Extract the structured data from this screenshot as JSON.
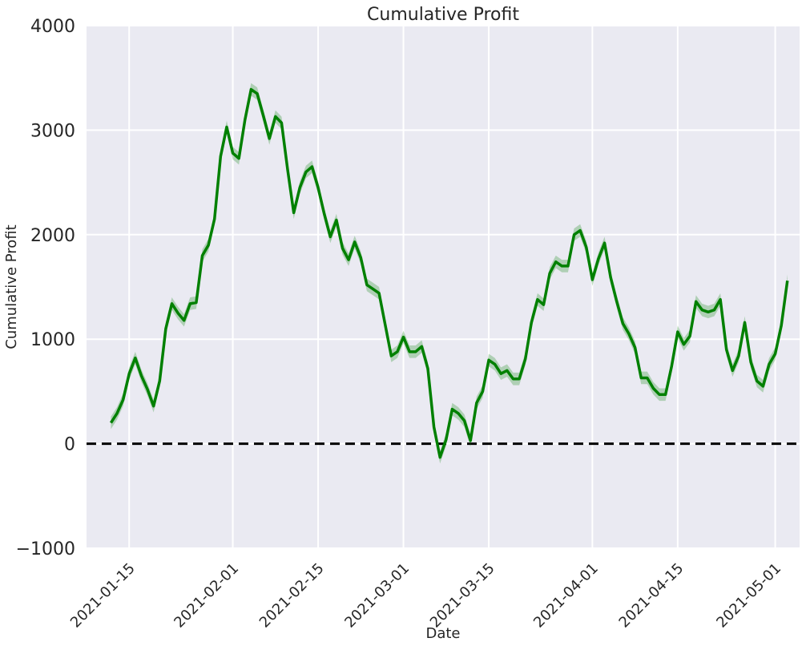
{
  "chart_data": {
    "type": "line",
    "title": "Cumulative Profit",
    "xlabel": "Date",
    "ylabel": "Cumulative Profit",
    "ylim": [
      -1000,
      4000
    ],
    "xlim": [
      "2021-01-08",
      "2021-05-05"
    ],
    "yticks": [
      "−1000",
      "0",
      "1000",
      "2000",
      "3000",
      "4000"
    ],
    "ytick_values": [
      -1000,
      0,
      1000,
      2000,
      3000,
      4000
    ],
    "xticks": [
      "2021-01-15",
      "2021-02-01",
      "2021-02-15",
      "2021-03-01",
      "2021-03-15",
      "2021-04-01",
      "2021-04-15",
      "2021-05-01"
    ],
    "grid": true,
    "reference_line": {
      "y": 0,
      "style": "dashed",
      "color": "#000000"
    },
    "colors": {
      "background": "#eaeaf2",
      "grid": "#ffffff",
      "line": "#008000",
      "band": "#008000"
    },
    "series": [
      {
        "x": [
          "2021-01-12",
          "2021-01-13",
          "2021-01-14",
          "2021-01-15",
          "2021-01-16",
          "2021-01-17",
          "2021-01-18",
          "2021-01-19",
          "2021-01-20",
          "2021-01-21",
          "2021-01-22",
          "2021-01-23",
          "2021-01-24",
          "2021-01-25",
          "2021-01-26",
          "2021-01-27",
          "2021-01-28",
          "2021-01-29",
          "2021-01-30",
          "2021-01-31",
          "2021-02-01",
          "2021-02-02",
          "2021-02-03",
          "2021-02-04",
          "2021-02-05",
          "2021-02-06",
          "2021-02-07",
          "2021-02-08",
          "2021-02-09",
          "2021-02-10",
          "2021-02-11",
          "2021-02-12",
          "2021-02-13",
          "2021-02-14",
          "2021-02-15",
          "2021-02-16",
          "2021-02-17",
          "2021-02-18",
          "2021-02-19",
          "2021-02-20",
          "2021-02-21",
          "2021-02-22",
          "2021-02-23",
          "2021-02-24",
          "2021-02-25",
          "2021-02-26",
          "2021-02-27",
          "2021-02-28",
          "2021-03-01",
          "2021-03-02",
          "2021-03-03",
          "2021-03-04",
          "2021-03-05",
          "2021-03-06",
          "2021-03-07",
          "2021-03-08",
          "2021-03-09",
          "2021-03-10",
          "2021-03-11",
          "2021-03-12",
          "2021-03-13",
          "2021-03-14",
          "2021-03-15",
          "2021-03-16",
          "2021-03-17",
          "2021-03-18",
          "2021-03-19",
          "2021-03-20",
          "2021-03-21",
          "2021-03-22",
          "2021-03-23",
          "2021-03-24",
          "2021-03-25",
          "2021-03-26",
          "2021-03-27",
          "2021-03-28",
          "2021-03-29",
          "2021-03-30",
          "2021-03-31",
          "2021-04-01",
          "2021-04-02",
          "2021-04-03",
          "2021-04-04",
          "2021-04-05",
          "2021-04-06",
          "2021-04-07",
          "2021-04-08",
          "2021-04-09",
          "2021-04-10",
          "2021-04-11",
          "2021-04-12",
          "2021-04-13",
          "2021-04-14",
          "2021-04-15",
          "2021-04-16",
          "2021-04-17",
          "2021-04-18",
          "2021-04-19",
          "2021-04-20",
          "2021-04-21",
          "2021-04-22",
          "2021-04-23",
          "2021-04-24",
          "2021-04-25",
          "2021-04-26",
          "2021-04-27",
          "2021-04-28",
          "2021-04-29",
          "2021-04-30",
          "2021-05-01",
          "2021-05-02",
          "2021-05-03"
        ],
        "y": [
          200,
          290,
          420,
          670,
          820,
          650,
          520,
          360,
          600,
          1100,
          1340,
          1250,
          1180,
          1340,
          1350,
          1800,
          1900,
          2150,
          2750,
          3030,
          2780,
          2730,
          3100,
          3390,
          3350,
          3140,
          2920,
          3130,
          3070,
          2620,
          2210,
          2450,
          2600,
          2650,
          2450,
          2200,
          1980,
          2140,
          1870,
          1760,
          1930,
          1780,
          1520,
          1480,
          1440,
          1140,
          840,
          880,
          1020,
          880,
          880,
          930,
          720,
          160,
          -130,
          40,
          330,
          290,
          220,
          30,
          390,
          500,
          800,
          760,
          670,
          700,
          620,
          620,
          810,
          1160,
          1380,
          1330,
          1630,
          1740,
          1700,
          1700,
          2000,
          2040,
          1880,
          1570,
          1770,
          1920,
          1590,
          1360,
          1150,
          1050,
          920,
          630,
          630,
          530,
          470,
          470,
          740,
          1070,
          950,
          1030,
          1360,
          1280,
          1260,
          1280,
          1380,
          900,
          700,
          840,
          1160,
          780,
          600,
          550,
          760,
          860,
          1130,
          1560
        ]
      }
    ]
  }
}
